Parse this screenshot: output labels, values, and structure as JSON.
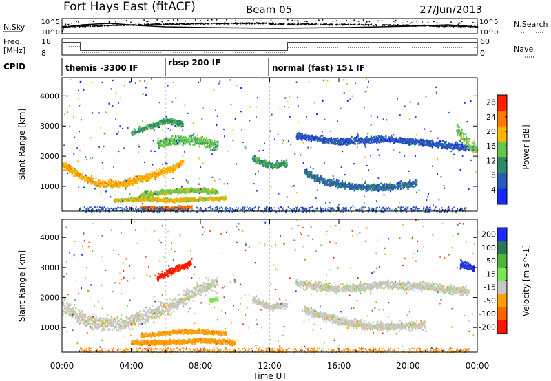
{
  "header": {
    "title": "Fort Hays East (fitACF)",
    "beam": "Beam 05",
    "date": "27/Jun/2013"
  },
  "top_panels": {
    "nsky_label": "N.Sky",
    "nsearch_label": "N.Search",
    "freq_label_1": "Freq.",
    "freq_label_2": "[MHz]",
    "nave_label": "Nave",
    "cpid_label": "CPID",
    "nsky_ticks": [
      "10^5",
      "10^0"
    ],
    "nsearch_ticks": [
      "10^5",
      "10^0"
    ],
    "freq_ticks": [
      "18",
      "8"
    ],
    "nave_ticks": [
      "60",
      "0"
    ],
    "cpid_segments": [
      {
        "start_hour": 0,
        "label": "themis -3300 IF"
      },
      {
        "start_hour": 6,
        "label": "rbsp 200 IF"
      },
      {
        "start_hour": 12,
        "label": "normal (fast) 151 IF"
      }
    ]
  },
  "chart_data": [
    {
      "type": "heatmap",
      "name": "power",
      "ylabel": "Slant Range [km]",
      "xlim": [
        0,
        24
      ],
      "ylim": [
        180,
        4600
      ],
      "y_ticks": [
        "1000",
        "2000",
        "3000",
        "4000"
      ],
      "y_tick_values": [
        1000,
        2000,
        3000,
        4000
      ],
      "colorbar_label": "Power [dB]",
      "colorbar_ticks": [
        "4",
        "8",
        "12",
        "16",
        "20",
        "24",
        "28"
      ],
      "colorbar_tick_values": [
        4,
        8,
        12,
        16,
        20,
        24,
        28
      ],
      "colorbar_range": [
        0,
        30
      ],
      "colorbar_colors": [
        "#1428ff",
        "#2a5ab4",
        "#2d8c64",
        "#64c850",
        "#ffb400",
        "#ff7800",
        "#ff1e00"
      ],
      "bands": [
        {
          "path": [
            [
              0,
              1750
            ],
            [
              1.0,
              1380
            ],
            [
              2.0,
              1120
            ],
            [
              3.5,
              1100
            ],
            [
              5.0,
              1350
            ],
            [
              6.5,
              1650
            ],
            [
              7.0,
              1900
            ]
          ],
          "width": 180,
          "level": 20
        },
        {
          "path": [
            [
              5.5,
              2450
            ],
            [
              6.5,
              2550
            ],
            [
              8.0,
              2550
            ],
            [
              9.0,
              2350
            ]
          ],
          "width": 220,
          "level": 14
        },
        {
          "path": [
            [
              4.0,
              2800
            ],
            [
              5.0,
              3000
            ],
            [
              6.0,
              3200
            ],
            [
              7.0,
              3100
            ]
          ],
          "width": 140,
          "level": 12
        },
        {
          "path": [
            [
              4.5,
              750
            ],
            [
              6.5,
              870
            ],
            [
              8.0,
              900
            ],
            [
              9.0,
              830
            ]
          ],
          "width": 110,
          "level": 16
        },
        {
          "path": [
            [
              3.0,
              560
            ],
            [
              5.0,
              620
            ],
            [
              6.0,
              560
            ],
            [
              9.5,
              640
            ]
          ],
          "width": 90,
          "level": 18
        },
        {
          "path": [
            [
              4.5,
              320
            ],
            [
              5.5,
              290
            ],
            [
              6.5,
              300
            ],
            [
              7.5,
              340
            ]
          ],
          "width": 90,
          "level": 24
        },
        {
          "path": [
            [
              11.0,
              1950
            ],
            [
              12.0,
              1700
            ],
            [
              13.0,
              1800
            ]
          ],
          "width": 160,
          "level": 12
        },
        {
          "path": [
            [
              13.5,
              2700
            ],
            [
              16.0,
              2500
            ],
            [
              18.5,
              2600
            ],
            [
              20.5,
              2500
            ],
            [
              23.5,
              2300
            ]
          ],
          "width": 160,
          "level": 6
        },
        {
          "path": [
            [
              14.0,
              1500
            ],
            [
              15.0,
              1200
            ],
            [
              17.0,
              1000
            ],
            [
              19.0,
              1000
            ],
            [
              20.5,
              1150
            ]
          ],
          "width": 170,
          "level": 8
        },
        {
          "path": [
            [
              22.8,
              2900
            ],
            [
              23.5,
              2400
            ],
            [
              24.0,
              2200
            ]
          ],
          "width": 300,
          "level": 15
        }
      ]
    },
    {
      "type": "heatmap",
      "name": "velocity",
      "ylabel": "Slant Range [km]",
      "xlabel": "Time UT",
      "xlim": [
        0,
        24
      ],
      "ylim": [
        180,
        4600
      ],
      "x_ticks": [
        "00:00",
        "04:00",
        "08:00",
        "12:00",
        "16:00",
        "20:00",
        "00:00"
      ],
      "x_tick_values": [
        0,
        4,
        8,
        12,
        16,
        20,
        24
      ],
      "y_ticks": [
        "1000",
        "2000",
        "3000",
        "4000"
      ],
      "y_tick_values": [
        1000,
        2000,
        3000,
        4000
      ],
      "colorbar_label": "Velocity [m s^-1]",
      "colorbar_ticks": [
        "200",
        "100",
        "50",
        "15",
        "-15",
        "-50",
        "-100",
        "-200"
      ],
      "colorbar_colors": [
        "#1e28ff",
        "#287850",
        "#50b43c",
        "#78e650",
        "#c8c8c8",
        "#ffa000",
        "#ff6400",
        "#ff1400"
      ],
      "bands": [
        {
          "path": [
            [
              0,
              1750
            ],
            [
              1.0,
              1380
            ],
            [
              2.0,
              1150
            ],
            [
              3.5,
              1150
            ],
            [
              5.0,
              1450
            ],
            [
              6.5,
              1800
            ],
            [
              8.0,
              2350
            ],
            [
              9.0,
              2500
            ]
          ],
          "width": 330,
          "color_index": 4
        },
        {
          "path": [
            [
              5.5,
              2700
            ],
            [
              6.5,
              2950
            ],
            [
              7.5,
              3200
            ]
          ],
          "width": 160,
          "color_index": 7
        },
        {
          "path": [
            [
              4.5,
              750
            ],
            [
              6.5,
              870
            ],
            [
              8.0,
              900
            ],
            [
              9.5,
              820
            ]
          ],
          "width": 100,
          "color_index": 5
        },
        {
          "path": [
            [
              4.0,
              530
            ],
            [
              6.0,
              520
            ],
            [
              8.0,
              600
            ],
            [
              10.0,
              520
            ]
          ],
          "width": 110,
          "color_index": 5
        },
        {
          "path": [
            [
              11.0,
              1950
            ],
            [
              12.0,
              1700
            ],
            [
              13.0,
              1800
            ]
          ],
          "width": 160,
          "color_index": 4
        },
        {
          "path": [
            [
              13.5,
              2500
            ],
            [
              16.0,
              2300
            ],
            [
              18.5,
              2450
            ],
            [
              21.0,
              2400
            ],
            [
              23.5,
              2200
            ]
          ],
          "width": 200,
          "color_index": 4
        },
        {
          "path": [
            [
              14.0,
              1600
            ],
            [
              16.0,
              1250
            ],
            [
              18.0,
              1050
            ],
            [
              21.0,
              1100
            ]
          ],
          "width": 200,
          "color_index": 4
        },
        {
          "path": [
            [
              23.0,
              3150
            ],
            [
              23.8,
              3000
            ]
          ],
          "width": 200,
          "color_index": 0
        },
        {
          "path": [
            [
              8.5,
              1950
            ],
            [
              9.0,
              1950
            ]
          ],
          "width": 100,
          "color_index": 3
        }
      ]
    }
  ]
}
